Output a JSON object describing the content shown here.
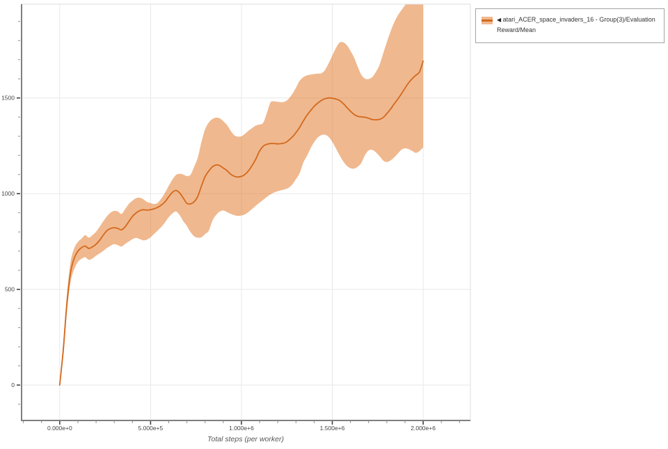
{
  "legend": {
    "items": [
      {
        "collapse_icon": "◀",
        "label": "atari_ACER_space_invaders_16 - Group(3)/Evaluation Reward/Mean"
      }
    ]
  },
  "chart_data": {
    "type": "line",
    "title": "",
    "xlabel": "Total steps (per worker)",
    "ylabel": "",
    "xlim": [
      -210000,
      2260000
    ],
    "ylim": [
      -185,
      1990
    ],
    "grid": true,
    "legend_position": "top-right-outside",
    "x_axis": {
      "minor_tick_step": 100000,
      "major_ticks": [
        {
          "value": 0,
          "label": "0.000e+0"
        },
        {
          "value": 500000,
          "label": "5.000e+5"
        },
        {
          "value": 1000000,
          "label": "1.000e+6"
        },
        {
          "value": 1500000,
          "label": "1.500e+6"
        },
        {
          "value": 2000000,
          "label": "2.000e+6"
        }
      ]
    },
    "y_axis": {
      "minor_tick_step": 100,
      "major_ticks": [
        {
          "value": 0,
          "label": "0"
        },
        {
          "value": 500,
          "label": "500"
        },
        {
          "value": 1000,
          "label": "1000"
        },
        {
          "value": 1500,
          "label": "1500"
        }
      ]
    },
    "series": [
      {
        "name": "atari_ACER_space_invaders_16 - Group(3)/Evaluation Reward/Mean",
        "color": "#d2691e",
        "band_color": "rgba(226,113,29,0.5)",
        "step_unit": 10000,
        "points_format": [
          "step_x10k",
          "mean",
          "band_low",
          "band_high"
        ],
        "points": [
          [
            0,
            0,
            0,
            0
          ],
          [
            2,
            190,
            150,
            235
          ],
          [
            4,
            430,
            385,
            480
          ],
          [
            6,
            590,
            540,
            645
          ],
          [
            8,
            663,
            605,
            715
          ],
          [
            10,
            700,
            643,
            748
          ],
          [
            12,
            718,
            660,
            765
          ],
          [
            14,
            726,
            668,
            783
          ],
          [
            16,
            714,
            654,
            770
          ],
          [
            18,
            722,
            661,
            783
          ],
          [
            20,
            736,
            676,
            801
          ],
          [
            22,
            757,
            688,
            828
          ],
          [
            24,
            784,
            701,
            856
          ],
          [
            26,
            807,
            716,
            882
          ],
          [
            28,
            818,
            728,
            901
          ],
          [
            30,
            822,
            736,
            910
          ],
          [
            32,
            818,
            731,
            907
          ],
          [
            34,
            811,
            724,
            894
          ],
          [
            36,
            827,
            737,
            919
          ],
          [
            38,
            854,
            750,
            946
          ],
          [
            40,
            881,
            762,
            963
          ],
          [
            42,
            899,
            769,
            976
          ],
          [
            44,
            911,
            763,
            979
          ],
          [
            46,
            916,
            756,
            971
          ],
          [
            48,
            914,
            760,
            957
          ],
          [
            50,
            916,
            772,
            951
          ],
          [
            52,
            921,
            790,
            946
          ],
          [
            54,
            929,
            808,
            953
          ],
          [
            56,
            941,
            827,
            976
          ],
          [
            58,
            958,
            851,
            1006
          ],
          [
            60,
            984,
            877,
            1041
          ],
          [
            62,
            1007,
            896,
            1073
          ],
          [
            64,
            1017,
            907,
            1098
          ],
          [
            66,
            1004,
            888,
            1104
          ],
          [
            68,
            977,
            856,
            1100
          ],
          [
            70,
            949,
            831,
            1092
          ],
          [
            72,
            947,
            799,
            1099
          ],
          [
            74,
            958,
            777,
            1141
          ],
          [
            76,
            986,
            770,
            1189
          ],
          [
            78,
            1040,
            772,
            1270
          ],
          [
            80,
            1089,
            789,
            1336
          ],
          [
            82,
            1118,
            806,
            1371
          ],
          [
            84,
            1140,
            858,
            1390
          ],
          [
            86,
            1150,
            888,
            1397
          ],
          [
            88,
            1147,
            906,
            1394
          ],
          [
            90,
            1134,
            912,
            1379
          ],
          [
            92,
            1121,
            904,
            1359
          ],
          [
            94,
            1102,
            895,
            1330
          ],
          [
            96,
            1091,
            888,
            1306
          ],
          [
            98,
            1087,
            884,
            1298
          ],
          [
            100,
            1090,
            886,
            1300
          ],
          [
            102,
            1101,
            892,
            1313
          ],
          [
            104,
            1121,
            905,
            1330
          ],
          [
            106,
            1149,
            921,
            1343
          ],
          [
            108,
            1183,
            938,
            1356
          ],
          [
            110,
            1223,
            953,
            1361
          ],
          [
            112,
            1248,
            968,
            1371
          ],
          [
            114,
            1258,
            983,
            1421
          ],
          [
            116,
            1262,
            996,
            1477
          ],
          [
            118,
            1262,
            1006,
            1482
          ],
          [
            120,
            1260,
            1013,
            1480
          ],
          [
            122,
            1262,
            1018,
            1478
          ],
          [
            124,
            1266,
            1023,
            1481
          ],
          [
            126,
            1279,
            1031,
            1496
          ],
          [
            128,
            1296,
            1048,
            1521
          ],
          [
            130,
            1319,
            1076,
            1553
          ],
          [
            132,
            1346,
            1106,
            1589
          ],
          [
            134,
            1379,
            1161,
            1608
          ],
          [
            136,
            1409,
            1196,
            1618
          ],
          [
            138,
            1433,
            1236,
            1622
          ],
          [
            140,
            1456,
            1269,
            1625
          ],
          [
            142,
            1473,
            1293,
            1627
          ],
          [
            144,
            1487,
            1306,
            1629
          ],
          [
            146,
            1496,
            1308,
            1646
          ],
          [
            148,
            1500,
            1296,
            1681
          ],
          [
            150,
            1499,
            1271,
            1721
          ],
          [
            152,
            1494,
            1236,
            1761
          ],
          [
            154,
            1487,
            1201,
            1789
          ],
          [
            156,
            1471,
            1169,
            1791
          ],
          [
            158,
            1451,
            1146,
            1776
          ],
          [
            160,
            1431,
            1133,
            1746
          ],
          [
            162,
            1414,
            1131,
            1711
          ],
          [
            164,
            1404,
            1141,
            1663
          ],
          [
            166,
            1401,
            1161,
            1621
          ],
          [
            168,
            1399,
            1201,
            1601
          ],
          [
            170,
            1394,
            1226,
            1599
          ],
          [
            172,
            1387,
            1229,
            1609
          ],
          [
            174,
            1386,
            1216,
            1636
          ],
          [
            176,
            1388,
            1196,
            1673
          ],
          [
            178,
            1398,
            1173,
            1733
          ],
          [
            180,
            1418,
            1165,
            1791
          ],
          [
            182,
            1441,
            1173,
            1846
          ],
          [
            184,
            1468,
            1189,
            1893
          ],
          [
            186,
            1493,
            1209,
            1930
          ],
          [
            188,
            1521,
            1229,
            1958
          ],
          [
            190,
            1551,
            1237,
            1984
          ],
          [
            192,
            1579,
            1233,
            2002
          ],
          [
            194,
            1601,
            1223,
            2010
          ],
          [
            196,
            1619,
            1213,
            2012
          ],
          [
            198,
            1636,
            1223,
            2010
          ],
          [
            200,
            1693,
            1241,
            2006
          ]
        ]
      }
    ],
    "colors": {
      "axis_line": "#7f7f7f",
      "tick": "#555555",
      "tick_label": "#444444",
      "gridline": "#e8e8e8",
      "plot_border": "#dddddd",
      "axis_title": "#555555"
    }
  }
}
